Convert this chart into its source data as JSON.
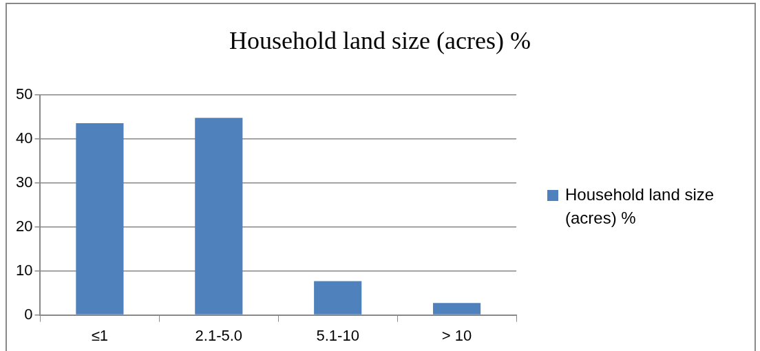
{
  "chart_data": {
    "type": "bar",
    "title": "Household land size (acres) %",
    "categories": [
      "≤1",
      "2.1-5.0",
      "5.1-10",
      "> 10"
    ],
    "series": [
      {
        "name": "Household land size (acres) %",
        "color": "#4f81bd",
        "values": [
          43.6,
          44.8,
          7.7,
          2.7
        ]
      }
    ],
    "ylim": [
      0,
      50
    ],
    "yticks": [
      0,
      10,
      20,
      30,
      40,
      50
    ],
    "grid": "y",
    "legend": "right"
  }
}
